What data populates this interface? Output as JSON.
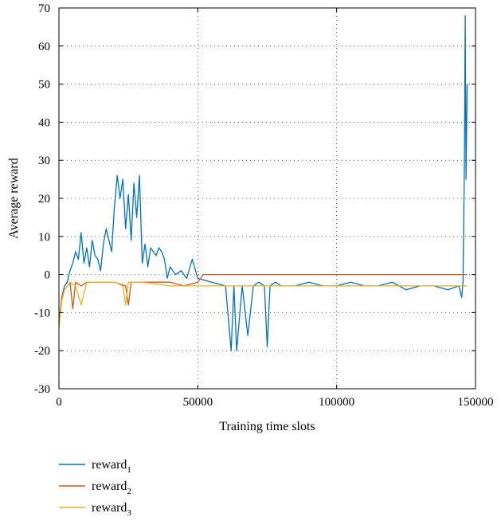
{
  "chart_data": {
    "type": "line",
    "title": "",
    "xlabel": "Training time slots",
    "ylabel": "Average reward",
    "xlim": [
      0,
      150000
    ],
    "ylim": [
      -30,
      70
    ],
    "xticks": [
      0,
      50000,
      100000,
      150000
    ],
    "xtick_labels": [
      "0",
      "50000",
      "100000",
      "150000"
    ],
    "yticks": [
      -30,
      -20,
      -10,
      0,
      10,
      20,
      30,
      40,
      50,
      60,
      70
    ],
    "ytick_labels": [
      "-30",
      "-20",
      "-10",
      "0",
      "10",
      "20",
      "30",
      "40",
      "50",
      "60",
      "70"
    ],
    "grid": true,
    "legend_position": "bottom-left, below axes",
    "series": [
      {
        "name": "reward",
        "subscript": "1",
        "color": "#0072BD",
        "x": [
          0,
          1000,
          2000,
          3000,
          4000,
          5000,
          6000,
          7000,
          8000,
          9000,
          10000,
          11000,
          12000,
          13000,
          14000,
          15000,
          16000,
          17000,
          18000,
          19000,
          20000,
          21000,
          22000,
          23000,
          24000,
          25000,
          26000,
          27000,
          28000,
          29000,
          30000,
          31000,
          32000,
          33000,
          34000,
          35000,
          36000,
          37000,
          38000,
          39000,
          40000,
          42000,
          44000,
          46000,
          48000,
          50000,
          55000,
          60000,
          62000,
          63000,
          64000,
          66000,
          68000,
          70000,
          72000,
          74000,
          75000,
          76000,
          78000,
          80000,
          85000,
          90000,
          95000,
          100000,
          105000,
          110000,
          115000,
          120000,
          125000,
          130000,
          135000,
          140000,
          144000,
          145000,
          145500,
          146000,
          146300,
          146600,
          147000
        ],
        "y": [
          -13,
          -6,
          -3,
          -2,
          1,
          3,
          6,
          4,
          11,
          3,
          7,
          2,
          9,
          5,
          4,
          1,
          8,
          12,
          9,
          6,
          18,
          26,
          20,
          25,
          12,
          21,
          9,
          24,
          15,
          26,
          3,
          8,
          2,
          7,
          6,
          5,
          7,
          6,
          4,
          -1,
          2,
          0,
          1,
          -1,
          4,
          -1,
          -2,
          -3,
          -20,
          -3,
          -20,
          -3,
          -16,
          -3,
          -2,
          -3,
          -19,
          -3,
          -2,
          -3,
          -3,
          -2,
          -3,
          -3,
          -2,
          -3,
          -3,
          -2,
          -4,
          -3,
          -3,
          -4,
          -3,
          -6,
          -2,
          30,
          68,
          25,
          50
        ]
      },
      {
        "name": "reward",
        "subscript": "2",
        "color": "#D95319",
        "x": [
          0,
          1000,
          2000,
          3000,
          4000,
          5000,
          6000,
          8000,
          10000,
          15000,
          20000,
          24000,
          25000,
          26000,
          30000,
          35000,
          40000,
          45000,
          50000,
          52000,
          55000,
          60000,
          70000,
          80000,
          90000,
          100000,
          110000,
          120000,
          130000,
          140000,
          145000,
          147000
        ],
        "y": [
          -13,
          -6,
          -4,
          -3,
          -2,
          -9,
          -2,
          -3,
          -2,
          -2,
          -2,
          -3,
          -8,
          -2,
          -2,
          -2,
          -2,
          -3,
          -2,
          0,
          0,
          0,
          0,
          0,
          0,
          0,
          0,
          0,
          0,
          0,
          0,
          0
        ]
      },
      {
        "name": "reward",
        "subscript": "3",
        "color": "#EDB120",
        "x": [
          0,
          1000,
          2000,
          3000,
          4000,
          6000,
          8000,
          10000,
          15000,
          20000,
          23000,
          24000,
          25000,
          30000,
          40000,
          50000,
          60000,
          70000,
          80000,
          90000,
          100000,
          110000,
          120000,
          130000,
          140000,
          145000,
          147000
        ],
        "y": [
          -14,
          -7,
          -4,
          -3,
          -2,
          -3,
          -8,
          -2,
          -2,
          -2,
          -3,
          -8,
          -2,
          -2,
          -3,
          -3,
          -3,
          -3,
          -3,
          -3,
          -3,
          -3,
          -3,
          -3,
          -3,
          -3,
          -3
        ]
      }
    ]
  }
}
